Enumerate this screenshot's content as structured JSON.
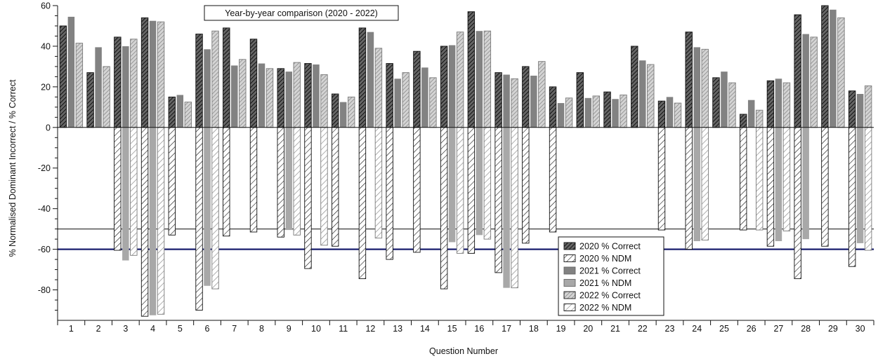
{
  "chart_data": {
    "type": "bar",
    "title": "Year-by-year comparison (2020 - 2022)",
    "xlabel": "Question Number",
    "ylabel": "% Normalised Dominant Incorrect / % Correct",
    "ylim": [
      -95,
      60
    ],
    "yticks": [
      60,
      40,
      20,
      0,
      -20,
      -40,
      -60,
      -80
    ],
    "categories": [
      "1",
      "2",
      "3",
      "4",
      "5",
      "6",
      "7",
      "8",
      "9",
      "10",
      "11",
      "12",
      "13",
      "14",
      "15",
      "16",
      "17",
      "18",
      "19",
      "20",
      "21",
      "22",
      "23",
      "24",
      "25",
      "26",
      "27",
      "28",
      "29",
      "30"
    ],
    "reference_lines": [
      {
        "y": -50,
        "color": "#222222"
      },
      {
        "y": -60,
        "color": "#1a1f6e"
      }
    ],
    "legend_position": "center-right",
    "series": [
      {
        "name": "2020 % Correct",
        "pattern": "dense-hatch",
        "values": [
          50,
          27,
          44.5,
          54,
          15,
          46,
          49,
          43.5,
          29,
          31.5,
          16.5,
          49,
          31.5,
          37.5,
          40,
          57,
          27,
          30,
          20,
          27,
          17.5,
          40,
          13,
          47,
          24.5,
          6.5,
          23,
          55.5,
          60,
          18
        ]
      },
      {
        "name": "2020 % NDM",
        "pattern": "open-hatch",
        "values": [
          null,
          null,
          -60.5,
          -93,
          -53,
          -90,
          -53.5,
          -51.5,
          -54,
          -69.5,
          -58.5,
          -74.5,
          -65,
          -61.5,
          -79.5,
          -62,
          -71.5,
          -57,
          -51.5,
          null,
          null,
          null,
          -50.5,
          -60,
          null,
          -50.5,
          -58.5,
          -74.5,
          -58.5,
          -68.5
        ]
      },
      {
        "name": "2021 % Correct",
        "pattern": "solid-dark",
        "values": [
          54.5,
          39.5,
          40,
          52.5,
          16,
          38.5,
          30.5,
          31.5,
          27.5,
          31,
          12.5,
          47,
          24,
          29.5,
          40.5,
          47.5,
          26,
          25.5,
          12,
          14.5,
          14,
          33,
          15,
          39.5,
          27.5,
          13.5,
          24,
          46,
          58,
          16.5
        ]
      },
      {
        "name": "2021 % NDM",
        "pattern": "solid-light",
        "values": [
          null,
          null,
          -65.5,
          -92.5,
          null,
          -78,
          null,
          null,
          -50.5,
          null,
          null,
          null,
          null,
          null,
          -56.5,
          -53,
          -79,
          null,
          null,
          null,
          null,
          null,
          null,
          -56,
          null,
          null,
          -56,
          -55,
          null,
          -57
        ]
      },
      {
        "name": "2022 % Correct",
        "pattern": "light-hatch",
        "values": [
          41.5,
          30,
          43.5,
          52,
          12.5,
          47.5,
          33.5,
          29,
          32,
          26,
          15,
          39,
          27,
          24.5,
          47,
          47.5,
          24,
          32.5,
          14.5,
          15.5,
          16,
          31,
          12,
          38.5,
          22,
          8.5,
          22,
          44.5,
          54,
          20.5
        ]
      },
      {
        "name": "2022 % NDM",
        "pattern": "open-hatch-light",
        "values": [
          null,
          null,
          -63,
          -92,
          null,
          -79.5,
          null,
          null,
          -53,
          -58,
          null,
          -54.5,
          null,
          null,
          -62,
          -55,
          -79,
          null,
          null,
          null,
          null,
          null,
          null,
          -55.5,
          null,
          -50.5,
          -51,
          null,
          null,
          -60.5
        ]
      }
    ]
  }
}
